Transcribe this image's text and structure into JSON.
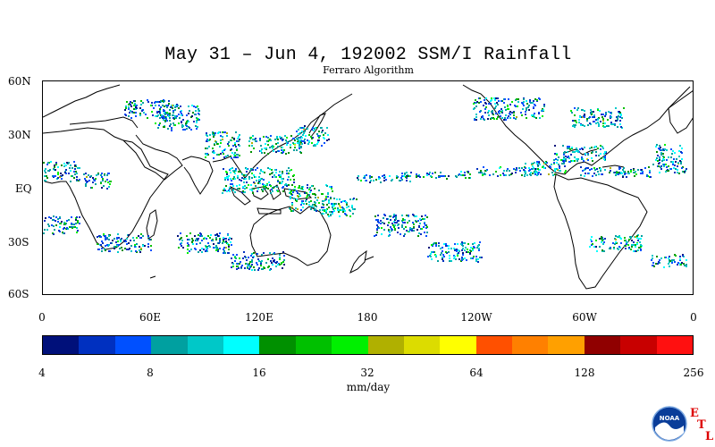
{
  "title": "May 31 – Jun 4, 192002 SSM/I Rainfall",
  "subtitle": "Ferraro Algorithm",
  "lat_labels": [
    "60N",
    "30N",
    "EQ",
    "30S",
    "60S"
  ],
  "lon_labels": [
    "0",
    "60E",
    "120E",
    "180",
    "120W",
    "60W",
    "0"
  ],
  "colorbar": {
    "ticks": [
      "4",
      "8",
      "16",
      "32",
      "64",
      "128",
      "256"
    ],
    "units": "mm/day",
    "colors": [
      "#00107a",
      "#0030c0",
      "#0050ff",
      "#00a0a0",
      "#00c8c8",
      "#00ffff",
      "#009000",
      "#00c000",
      "#00f000",
      "#b0b000",
      "#dcdc00",
      "#ffff00",
      "#ff5000",
      "#ff8000",
      "#ffa000",
      "#900000",
      "#c80000",
      "#ff1010"
    ]
  },
  "logo": {
    "name": "NOAA",
    "letters": [
      "E",
      "T",
      "L"
    ]
  }
}
